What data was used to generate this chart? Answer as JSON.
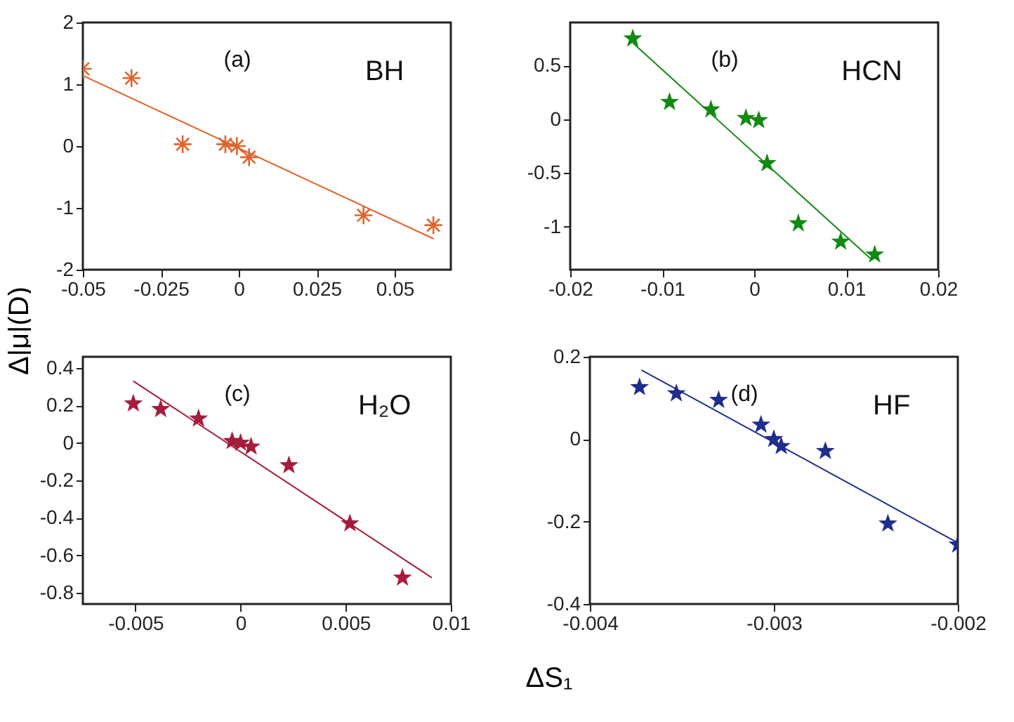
{
  "chart_data": [
    {
      "type": "scatter",
      "annotations": [
        "(a)",
        "BH"
      ],
      "marker": "cross",
      "xlim": [
        -0.05,
        0.068
      ],
      "xticks": [
        -0.05,
        -0.025,
        0,
        0.025,
        0.05
      ],
      "ylim": [
        -2,
        2
      ],
      "yticks": [
        -2,
        -1,
        0,
        1,
        2
      ],
      "series": [
        {
          "color": "#e0642a",
          "x": [
            -0.05,
            -0.0344,
            -0.018,
            -0.0043,
            -0.0006,
            0.0033,
            0.04,
            0.0624
          ],
          "values": [
            1.25,
            1.1,
            0.03,
            0.03,
            0.0,
            -0.18,
            -1.12,
            -1.28
          ]
        },
        {
          "type": "line",
          "marker": "none",
          "color": "#e0642a",
          "x": [
            -0.05,
            0.0625
          ],
          "values": [
            1.14,
            -1.5
          ]
        }
      ]
    },
    {
      "type": "scatter",
      "annotations": [
        "(b)",
        "HCN"
      ],
      "marker": "star",
      "xlim": [
        -0.02,
        0.02
      ],
      "xticks": [
        -0.02,
        -0.01,
        0,
        0.01,
        0.02
      ],
      "ylim": [
        -1.4,
        0.9
      ],
      "yticks": [
        -1,
        -0.5,
        0,
        0.5
      ],
      "series": [
        {
          "color": "#128a12",
          "x": [
            -0.0132,
            -0.0092,
            -0.0047,
            -0.0009,
            0.0005,
            0.0014,
            0.0048,
            0.0094,
            0.0131
          ],
          "values": [
            0.75,
            0.16,
            0.09,
            0.01,
            -0.01,
            -0.41,
            -0.97,
            -1.14,
            -1.26
          ]
        },
        {
          "type": "line",
          "marker": "none",
          "color": "#128a12",
          "x": [
            -0.0132,
            0.0127
          ],
          "values": [
            0.71,
            -1.3
          ]
        }
      ]
    },
    {
      "type": "scatter",
      "annotations": [
        "(c)",
        "H₂O"
      ],
      "marker": "star",
      "xlabel": "ΔS₁",
      "ylabel": "Δ|μ|(D)",
      "xlim": [
        -0.0075,
        0.01
      ],
      "xticks": [
        -0.005,
        0,
        0.005,
        0.01
      ],
      "ylim": [
        -0.86,
        0.46
      ],
      "yticks": [
        -0.8,
        -0.6,
        -0.4,
        -0.2,
        0,
        0.2,
        0.4
      ],
      "series": [
        {
          "color": "#a51c3c",
          "x": [
            -0.0051,
            -0.0038,
            -0.002,
            -0.0004,
            0,
            0.0005,
            0.0023,
            0.0052,
            0.0077
          ],
          "values": [
            0.21,
            0.18,
            0.13,
            0.01,
            0,
            -0.02,
            -0.12,
            -0.43,
            -0.72
          ]
        },
        {
          "type": "line",
          "marker": "none",
          "color": "#a51c3c",
          "x": [
            -0.0051,
            0.0091
          ],
          "values": [
            0.33,
            -0.72
          ]
        }
      ]
    },
    {
      "type": "scatter",
      "annotations": [
        "(d)",
        "HF"
      ],
      "marker": "star",
      "xlim": [
        -0.004,
        -0.002
      ],
      "xticks": [
        -0.004,
        -0.003,
        -0.002
      ],
      "ylim": [
        -0.4,
        0.2
      ],
      "yticks": [
        -0.4,
        -0.2,
        0,
        0.2
      ],
      "series": [
        {
          "color": "#1f2e8c",
          "x": [
            -0.00373,
            -0.00353,
            -0.0033,
            -0.00307,
            -0.003,
            -0.00296,
            -0.00272,
            -0.00238,
            -0.002
          ],
          "values": [
            0.126,
            0.111,
            0.095,
            0.035,
            0,
            -0.017,
            -0.029,
            -0.205,
            -0.256
          ]
        },
        {
          "type": "line",
          "marker": "none",
          "color": "#1f2e8c",
          "x": [
            -0.00372,
            -0.00201
          ],
          "values": [
            0.168,
            -0.249
          ]
        }
      ]
    }
  ]
}
